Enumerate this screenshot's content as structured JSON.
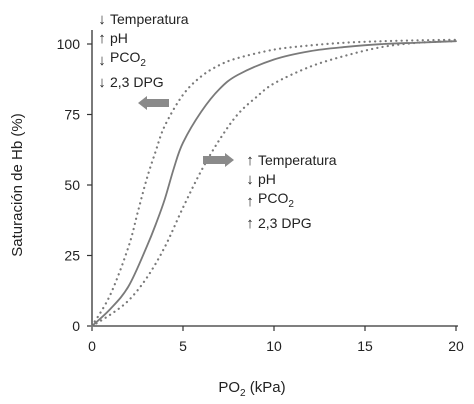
{
  "chart_data": {
    "type": "line",
    "xlabel_main": "PO",
    "xlabel_sub": "2",
    "xlabel_tail": " (kPa)",
    "ylabel": "Saturación de Hb (%)",
    "xlim": [
      0,
      20
    ],
    "ylim": [
      0,
      100
    ],
    "x_ticks": [
      "0",
      "5",
      "10",
      "15",
      "20"
    ],
    "y_ticks": [
      "0",
      "25",
      "50",
      "75",
      "100"
    ],
    "grid": false,
    "series": [
      {
        "style": "solid",
        "color": "#7a7a7a",
        "x": [
          0,
          1,
          2,
          3,
          3.5,
          4,
          4.5,
          5,
          6,
          7,
          8,
          10,
          12,
          14,
          16,
          18,
          20
        ],
        "y": [
          0,
          6,
          14,
          28,
          36,
          45,
          56,
          65,
          76,
          84,
          89,
          94.5,
          97.5,
          99,
          100,
          100.5,
          101
        ]
      },
      {
        "style": "dotted",
        "color": "#7a7a7a",
        "x": [
          0,
          1,
          2,
          2.5,
          3,
          3.5,
          4,
          5,
          6,
          7,
          8,
          10,
          12,
          14,
          16,
          18,
          20
        ],
        "y": [
          0,
          11,
          28,
          40,
          52,
          62,
          71,
          82,
          88.5,
          92.5,
          95,
          98,
          99.5,
          100.5,
          101,
          101.3,
          101.5
        ]
      },
      {
        "style": "dotted",
        "color": "#7a7a7a",
        "x": [
          0,
          1,
          2,
          3,
          4,
          5,
          6,
          7,
          8,
          9,
          10,
          12,
          14,
          16,
          18,
          20
        ],
        "y": [
          0,
          4,
          9,
          17,
          28,
          42,
          55,
          66,
          75,
          81,
          86,
          92,
          96,
          99,
          100.5,
          101
        ]
      }
    ],
    "annotations": {
      "left_shift": [
        {
          "arrow": "down",
          "text": "Temperatura",
          "sub": ""
        },
        {
          "arrow": "up",
          "text": "pH",
          "sub": ""
        },
        {
          "arrow": "down",
          "text": "PCO",
          "sub": "2"
        },
        {
          "arrow": "down",
          "text": "2,3 DPG",
          "sub": ""
        }
      ],
      "right_shift": [
        {
          "arrow": "up",
          "text": "Temperatura",
          "sub": ""
        },
        {
          "arrow": "down",
          "text": "pH",
          "sub": ""
        },
        {
          "arrow": "up",
          "text": "PCO",
          "sub": "2"
        },
        {
          "arrow": "up",
          "text": "2,3 DPG",
          "sub": ""
        }
      ],
      "arrow_color": "#8a8a8a"
    }
  }
}
